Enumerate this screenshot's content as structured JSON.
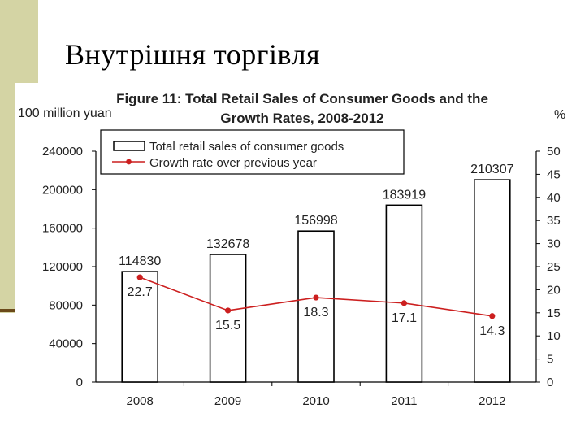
{
  "slide": {
    "title": "Внутрішня торгівля"
  },
  "colors": {
    "side_band": "#d4d4a4",
    "side_rule": "#6b4a1a",
    "bar_stroke": "#000000",
    "line": "#cc1f1f"
  },
  "chart_data": {
    "type": "bar",
    "title_line1": "Figure 11: Total Retail Sales of Consumer Goods and the",
    "title_line2": "Growth Rates, 2008-2012",
    "left_unit": "100 million yuan",
    "right_unit": "%",
    "categories": [
      "2008",
      "2009",
      "2010",
      "2011",
      "2012"
    ],
    "series": [
      {
        "name": "Total retail sales of consumer goods",
        "type": "bar",
        "axis": "left",
        "values": [
          114830,
          132678,
          156998,
          183919,
          210307
        ]
      },
      {
        "name": "Growth rate over previous year",
        "type": "line",
        "axis": "right",
        "values": [
          22.7,
          15.5,
          18.3,
          17.1,
          14.3
        ]
      }
    ],
    "y_left": {
      "range": [
        0,
        240000
      ],
      "ticks": [
        0,
        40000,
        80000,
        120000,
        160000,
        200000,
        240000
      ]
    },
    "y_right": {
      "range": [
        0,
        50
      ],
      "ticks": [
        0,
        5,
        10,
        15,
        20,
        25,
        30,
        35,
        40,
        45,
        50
      ]
    },
    "legend_position": "top-left",
    "grid": false
  }
}
